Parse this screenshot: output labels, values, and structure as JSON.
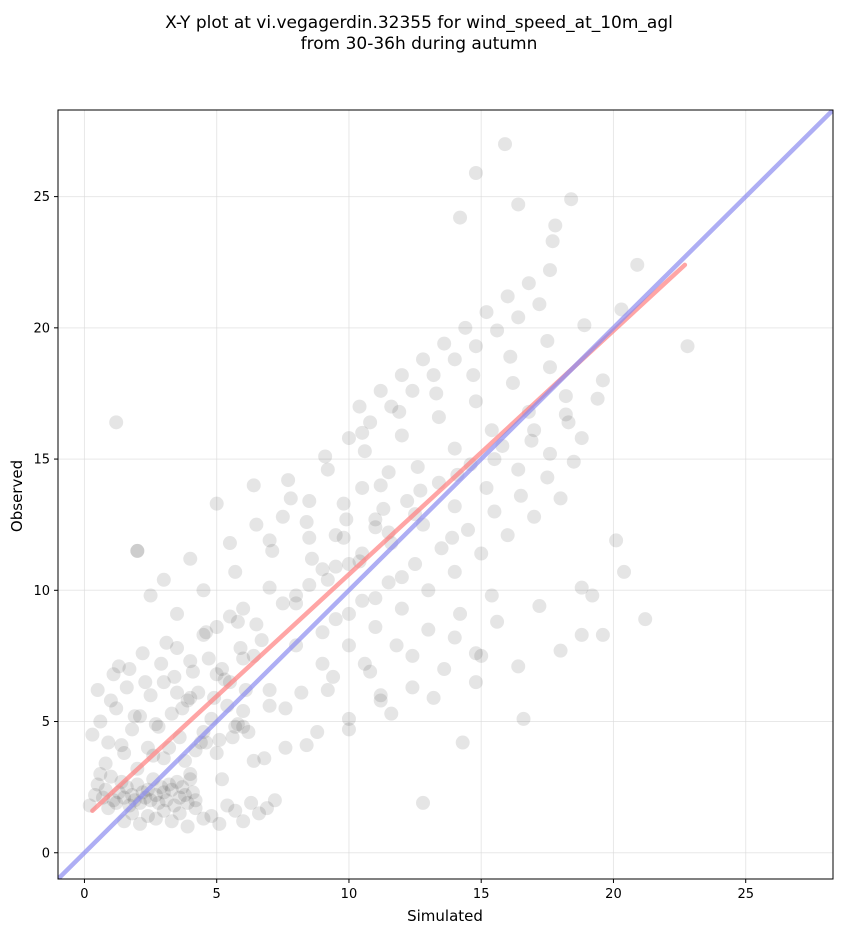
{
  "chart_data": {
    "type": "scatter",
    "title_lines": [
      "X-Y plot at vi.vegagerdin.32355 for wind_speed_at_10m_agl",
      "from 30-36h during autumn"
    ],
    "xlabel": "Simulated",
    "ylabel": "Observed",
    "xlim": [
      -1.0,
      28.3
    ],
    "ylim": [
      -1.0,
      28.3
    ],
    "xticks": [
      0,
      5,
      10,
      15,
      20,
      25
    ],
    "yticks": [
      0,
      5,
      10,
      15,
      20,
      25
    ],
    "grid": true,
    "points": {
      "marker_color": "#000000",
      "alpha": 0.1,
      "x": [
        0.2,
        0.4,
        0.5,
        0.6,
        0.7,
        0.8,
        0.9,
        1.0,
        1.1,
        1.2,
        1.3,
        1.4,
        1.5,
        1.6,
        1.7,
        1.8,
        1.9,
        2.0,
        2.1,
        2.2,
        2.3,
        2.4,
        2.5,
        2.6,
        2.7,
        2.8,
        2.9,
        3.0,
        3.1,
        3.2,
        3.3,
        3.4,
        3.5,
        3.6,
        3.7,
        3.8,
        3.9,
        4.0,
        4.1,
        4.2,
        0.3,
        0.6,
        0.9,
        1.2,
        1.5,
        1.8,
        2.1,
        2.4,
        2.7,
        3.0,
        3.3,
        3.6,
        3.9,
        4.2,
        4.5,
        4.8,
        5.1,
        5.4,
        5.7,
        6.0,
        0.5,
        0.8,
        1.1,
        1.4,
        1.7,
        2.0,
        2.3,
        2.6,
        2.9,
        3.2,
        3.5,
        3.8,
        4.1,
        4.4,
        4.7,
        5.0,
        5.3,
        5.6,
        5.9,
        6.2,
        1.0,
        1.3,
        1.6,
        1.9,
        2.2,
        2.5,
        2.8,
        3.1,
        3.4,
        3.7,
        4.0,
        4.3,
        4.6,
        4.9,
        5.2,
        5.5,
        5.8,
        6.1,
        6.4,
        6.7,
        1.5,
        1.8,
        2.1,
        2.4,
        2.7,
        3.0,
        3.3,
        3.6,
        3.9,
        4.2,
        4.5,
        4.8,
        5.1,
        5.4,
        5.7,
        6.0,
        6.3,
        6.6,
        6.9,
        7.2,
        2.0,
        2.5,
        3.0,
        3.5,
        4.0,
        4.5,
        5.0,
        5.5,
        6.0,
        6.5,
        7.0,
        7.5,
        8.0,
        8.5,
        9.0,
        9.5,
        10.0,
        10.5,
        11.0,
        11.5,
        3.0,
        3.5,
        4.0,
        4.5,
        5.0,
        5.5,
        6.0,
        6.5,
        7.0,
        7.5,
        8.0,
        8.5,
        9.0,
        9.5,
        10.0,
        10.5,
        11.0,
        11.5,
        12.0,
        12.5,
        4.0,
        4.6,
        5.2,
        5.8,
        6.4,
        7.0,
        7.6,
        8.2,
        8.8,
        9.4,
        10.0,
        10.6,
        11.2,
        11.8,
        12.4,
        13.0,
        13.6,
        14.2,
        14.8,
        15.4,
        5.0,
        5.7,
        6.4,
        7.1,
        7.8,
        8.5,
        9.2,
        9.9,
        10.6,
        11.3,
        12.0,
        12.7,
        13.4,
        14.1,
        14.8,
        15.5,
        16.2,
        16.9,
        17.6,
        18.3,
        6.0,
        6.8,
        7.6,
        8.4,
        9.2,
        10.0,
        10.8,
        11.6,
        12.4,
        13.2,
        14.0,
        14.8,
        15.6,
        16.4,
        17.2,
        18.0,
        18.8,
        19.6,
        20.4,
        21.2,
        7.0,
        7.7,
        8.4,
        9.1,
        9.8,
        10.5,
        11.2,
        11.9,
        12.6,
        13.3,
        14.0,
        14.7,
        15.4,
        16.1,
        16.8,
        17.5,
        18.2,
        18.9,
        19.6,
        20.3,
        8.0,
        8.6,
        9.2,
        9.8,
        10.4,
        11.0,
        11.6,
        12.2,
        12.8,
        13.4,
        14.0,
        14.6,
        15.2,
        15.8,
        16.4,
        17.0,
        17.6,
        18.2,
        18.8,
        19.4,
        9.0,
        9.5,
        10.0,
        10.5,
        11.0,
        11.5,
        12.0,
        12.5,
        13.0,
        13.5,
        14.0,
        14.5,
        15.0,
        15.5,
        16.0,
        16.5,
        17.0,
        17.5,
        18.0,
        18.5,
        10.0,
        10.4,
        10.8,
        11.2,
        11.6,
        12.0,
        12.4,
        12.8,
        13.2,
        13.6,
        14.0,
        14.4,
        14.8,
        15.2,
        15.6,
        16.0,
        16.4,
        16.8,
        17.2,
        17.6,
        1.2,
        2.0,
        14.8,
        15.9,
        16.4,
        14.2,
        18.4,
        17.8,
        17.7,
        20.9,
        22.8,
        20.1,
        19.2,
        18.8,
        16.6,
        14.3,
        11.2,
        12.8,
        13.9,
        15.0
      ],
      "y": [
        1.8,
        2.2,
        2.6,
        3.0,
        2.1,
        2.4,
        1.7,
        2.9,
        2.0,
        1.9,
        2.3,
        2.7,
        2.1,
        2.5,
        1.8,
        2.2,
        2.0,
        2.6,
        1.9,
        2.3,
        2.1,
        2.4,
        2.0,
        2.8,
        2.2,
        1.9,
        2.5,
        2.3,
        2.0,
        2.6,
        2.4,
        1.8,
        2.7,
        2.1,
        2.5,
        2.2,
        1.9,
        2.8,
        2.3,
        2.0,
        4.5,
        5.0,
        4.2,
        5.5,
        3.8,
        4.7,
        5.2,
        4.0,
        4.9,
        3.6,
        5.3,
        4.4,
        5.8,
        3.9,
        4.6,
        5.1,
        4.3,
        5.6,
        4.8,
        5.4,
        6.2,
        3.4,
        6.8,
        4.1,
        7.0,
        3.2,
        6.5,
        3.7,
        7.2,
        4.0,
        6.1,
        3.5,
        6.9,
        4.2,
        7.4,
        3.8,
        6.6,
        4.4,
        7.8,
        4.6,
        5.8,
        7.1,
        6.3,
        5.2,
        7.6,
        6.0,
        4.8,
        8.0,
        6.7,
        5.5,
        7.3,
        6.1,
        8.4,
        5.9,
        7.0,
        6.5,
        8.8,
        6.2,
        7.5,
        8.1,
        1.2,
        1.5,
        1.1,
        1.4,
        1.3,
        1.6,
        1.2,
        1.5,
        1.0,
        1.7,
        1.3,
        1.4,
        1.1,
        1.8,
        1.6,
        1.2,
        1.9,
        1.5,
        1.7,
        2.0,
        11.5,
        9.8,
        10.4,
        9.1,
        11.2,
        10.0,
        8.6,
        11.8,
        9.3,
        12.5,
        10.1,
        12.8,
        9.5,
        13.4,
        10.8,
        12.1,
        11.0,
        13.9,
        12.4,
        14.5,
        6.5,
        7.8,
        5.9,
        8.3,
        6.8,
        9.0,
        7.4,
        8.7,
        6.2,
        9.5,
        7.9,
        10.2,
        8.4,
        10.9,
        9.1,
        11.4,
        9.7,
        12.2,
        10.5,
        12.9,
        3.0,
        4.2,
        2.8,
        4.9,
        3.5,
        5.6,
        4.0,
        6.1,
        4.6,
        6.7,
        5.1,
        7.2,
        5.8,
        7.9,
        6.3,
        8.5,
        7.0,
        9.1,
        7.6,
        9.8,
        13.3,
        10.7,
        14.0,
        11.5,
        13.5,
        12.0,
        14.6,
        12.7,
        15.3,
        13.1,
        15.9,
        13.8,
        16.6,
        14.4,
        17.2,
        15.0,
        17.9,
        15.7,
        18.5,
        16.4,
        4.8,
        3.6,
        5.5,
        4.1,
        6.2,
        4.7,
        6.9,
        5.3,
        7.5,
        5.9,
        8.2,
        6.5,
        8.8,
        7.1,
        9.4,
        7.7,
        10.1,
        8.3,
        10.7,
        8.9,
        11.9,
        14.2,
        12.6,
        15.1,
        13.3,
        16.0,
        14.0,
        16.8,
        14.7,
        17.5,
        15.4,
        18.2,
        16.1,
        18.9,
        16.8,
        19.5,
        17.4,
        20.1,
        18.0,
        20.7,
        9.8,
        11.2,
        10.4,
        12.0,
        11.1,
        12.7,
        11.8,
        13.4,
        12.5,
        14.1,
        13.2,
        14.8,
        13.9,
        15.5,
        14.6,
        16.1,
        15.2,
        16.7,
        15.8,
        17.3,
        7.2,
        8.9,
        7.9,
        9.6,
        8.6,
        10.3,
        9.3,
        11.0,
        10.0,
        11.6,
        10.7,
        12.3,
        11.4,
        13.0,
        12.1,
        13.6,
        12.8,
        14.3,
        13.5,
        14.9,
        15.8,
        17.0,
        16.4,
        17.6,
        17.0,
        18.2,
        17.6,
        18.8,
        18.2,
        19.4,
        18.8,
        20.0,
        19.3,
        20.6,
        19.9,
        21.2,
        20.4,
        21.7,
        20.9,
        22.2,
        16.4,
        11.5,
        25.9,
        27.0,
        24.7,
        24.2,
        24.9,
        23.9,
        23.3,
        22.4,
        19.3,
        11.9,
        9.8,
        8.3,
        5.1,
        4.2,
        6.0,
        1.9,
        12.0,
        7.5
      ]
    },
    "series": [
      {
        "type": "fit",
        "color": "#ff7f7f",
        "x": [
          0.3,
          22.7
        ],
        "y": [
          1.6,
          22.4
        ]
      },
      {
        "type": "identity",
        "color": "#8c8cf0",
        "x": [
          -1.0,
          28.3
        ],
        "y": [
          -1.0,
          28.3
        ]
      }
    ]
  }
}
